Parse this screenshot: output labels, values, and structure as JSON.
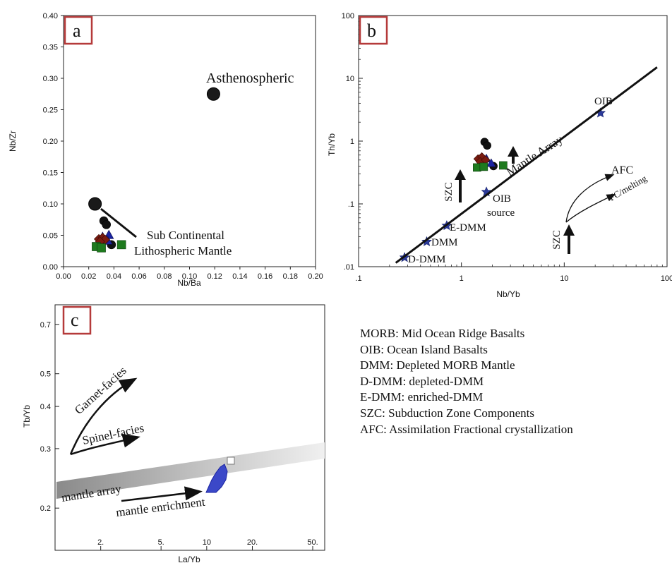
{
  "chart_data": [
    {
      "type": "scatter",
      "panel_label": "a",
      "xlabel": "Nb/Ba",
      "ylabel": "Nb/Zr",
      "xlim": [
        0.0,
        0.2
      ],
      "ylim": [
        0.0,
        0.4
      ],
      "xticks": [
        "0.00",
        "0.02",
        "0.04",
        "0.06",
        "0.08",
        "0.10",
        "0.12",
        "0.14",
        "0.16",
        "0.18",
        "0.20"
      ],
      "yticks": [
        "0.00",
        "0.05",
        "0.10",
        "0.15",
        "0.20",
        "0.25",
        "0.30",
        "0.35",
        "0.40"
      ],
      "reference_points": [
        {
          "name": "Asthenospheric",
          "x": 0.119,
          "y": 0.275
        },
        {
          "name": "Sub Continental Lithospheric Mantle",
          "x": 0.025,
          "y": 0.1
        }
      ],
      "annotations": [
        "Asthenospheric",
        "Sub Continental",
        "Lithospheric Mantle"
      ],
      "samples": [
        {
          "shape": "circle",
          "color": "#111111",
          "x": 0.032,
          "y": 0.073
        },
        {
          "shape": "circle",
          "color": "#111111",
          "x": 0.034,
          "y": 0.067
        },
        {
          "shape": "circle",
          "color": "#111111",
          "x": 0.038,
          "y": 0.035
        },
        {
          "shape": "circle",
          "color": "#111111",
          "x": 0.03,
          "y": 0.038
        },
        {
          "shape": "triangle",
          "color": "#1a23a0",
          "x": 0.036,
          "y": 0.05
        },
        {
          "shape": "triangle",
          "color": "#1a23a0",
          "x": 0.031,
          "y": 0.047
        },
        {
          "shape": "triangle",
          "color": "#1a23a0",
          "x": 0.035,
          "y": 0.041
        },
        {
          "shape": "diamond",
          "color": "#7a1b10",
          "x": 0.028,
          "y": 0.044
        },
        {
          "shape": "diamond",
          "color": "#7a1b10",
          "x": 0.031,
          "y": 0.046
        },
        {
          "shape": "diamond",
          "color": "#7a1b10",
          "x": 0.033,
          "y": 0.043
        },
        {
          "shape": "diamond",
          "color": "#7a1b10",
          "x": 0.029,
          "y": 0.04
        },
        {
          "shape": "square",
          "color": "#1e7a1e",
          "x": 0.026,
          "y": 0.032
        },
        {
          "shape": "square",
          "color": "#1e7a1e",
          "x": 0.046,
          "y": 0.035
        },
        {
          "shape": "square",
          "color": "#1e7a1e",
          "x": 0.03,
          "y": 0.03
        }
      ]
    },
    {
      "type": "scatter",
      "panel_label": "b",
      "xlabel": "Nb/Yb",
      "ylabel": "Th/Yb",
      "log_x": true,
      "log_y": true,
      "xlim": [
        0.1,
        100
      ],
      "ylim": [
        0.01,
        100
      ],
      "xticks": [
        ".1",
        "1",
        "10",
        "100"
      ],
      "yticks": [
        ".01",
        ".1",
        "1",
        "10",
        "100"
      ],
      "mantle_array": {
        "label": "Mantle Array",
        "x": [
          0.23,
          80
        ],
        "y": [
          0.0115,
          15
        ]
      },
      "reference_points": [
        {
          "name": "D-DMM",
          "x": 0.28,
          "y": 0.014
        },
        {
          "name": "DMM",
          "x": 0.46,
          "y": 0.025
        },
        {
          "name": "E-DMM",
          "x": 0.72,
          "y": 0.045
        },
        {
          "name": "OIB source",
          "x": 1.75,
          "y": 0.155
        },
        {
          "name": "OIB",
          "x": 22.5,
          "y": 2.8
        }
      ],
      "labels": {
        "ddmm": "D-DMM",
        "dmm": "DMM",
        "edmm": "E-DMM",
        "oib_source_1": "OIB",
        "oib_source_2": "source",
        "oib": "OIB",
        "mantle_array": "Mantle Array",
        "szc": "SZC",
        "afc": "AFC",
        "fc": "FC/melting"
      },
      "samples": [
        {
          "shape": "circle",
          "color": "#111111",
          "x": 1.68,
          "y": 0.97
        },
        {
          "shape": "circle",
          "color": "#111111",
          "x": 1.78,
          "y": 0.85
        },
        {
          "shape": "circle",
          "color": "#111111",
          "x": 2.05,
          "y": 0.4
        },
        {
          "shape": "triangle",
          "color": "#1a23a0",
          "x": 1.75,
          "y": 0.52
        },
        {
          "shape": "triangle",
          "color": "#1a23a0",
          "x": 1.95,
          "y": 0.44
        },
        {
          "shape": "diamond",
          "color": "#7a1b10",
          "x": 1.45,
          "y": 0.52
        },
        {
          "shape": "diamond",
          "color": "#7a1b10",
          "x": 1.58,
          "y": 0.56
        },
        {
          "shape": "diamond",
          "color": "#7a1b10",
          "x": 1.52,
          "y": 0.47
        },
        {
          "shape": "diamond",
          "color": "#7a1b10",
          "x": 1.72,
          "y": 0.5
        },
        {
          "shape": "square",
          "color": "#1e7a1e",
          "x": 1.42,
          "y": 0.38
        },
        {
          "shape": "square",
          "color": "#1e7a1e",
          "x": 2.55,
          "y": 0.41
        },
        {
          "shape": "square",
          "color": "#1e7a1e",
          "x": 1.65,
          "y": 0.39
        }
      ]
    },
    {
      "type": "scatter",
      "panel_label": "c",
      "xlabel": "La/Yb",
      "ylabel": "Tb/Yb",
      "log_x": true,
      "log_y": true,
      "xlim": [
        1,
        60
      ],
      "ylim": [
        0.15,
        0.8
      ],
      "xticks": [
        "2.",
        "5.",
        "10",
        "20.",
        "50."
      ],
      "yticks": [
        "0.2",
        "0.3",
        "0.4",
        "0.5",
        "0.7"
      ],
      "labels": {
        "garnet": "Garnet-facies",
        "spinel": "Spinel-facies",
        "mantle_array": "mantle array",
        "enrichment": "mantle enrichment"
      }
    }
  ],
  "legend": [
    "MORB: Mid Ocean Ridge Basalts",
    "OIB: Ocean Island Basalts",
    "DMM: Depleted MORB Mantle",
    "D-DMM: depleted-DMM",
    "E-DMM: enriched-DMM",
    "SZC: Subduction Zone Components",
    "AFC: Assimilation Fractional crystallization"
  ]
}
